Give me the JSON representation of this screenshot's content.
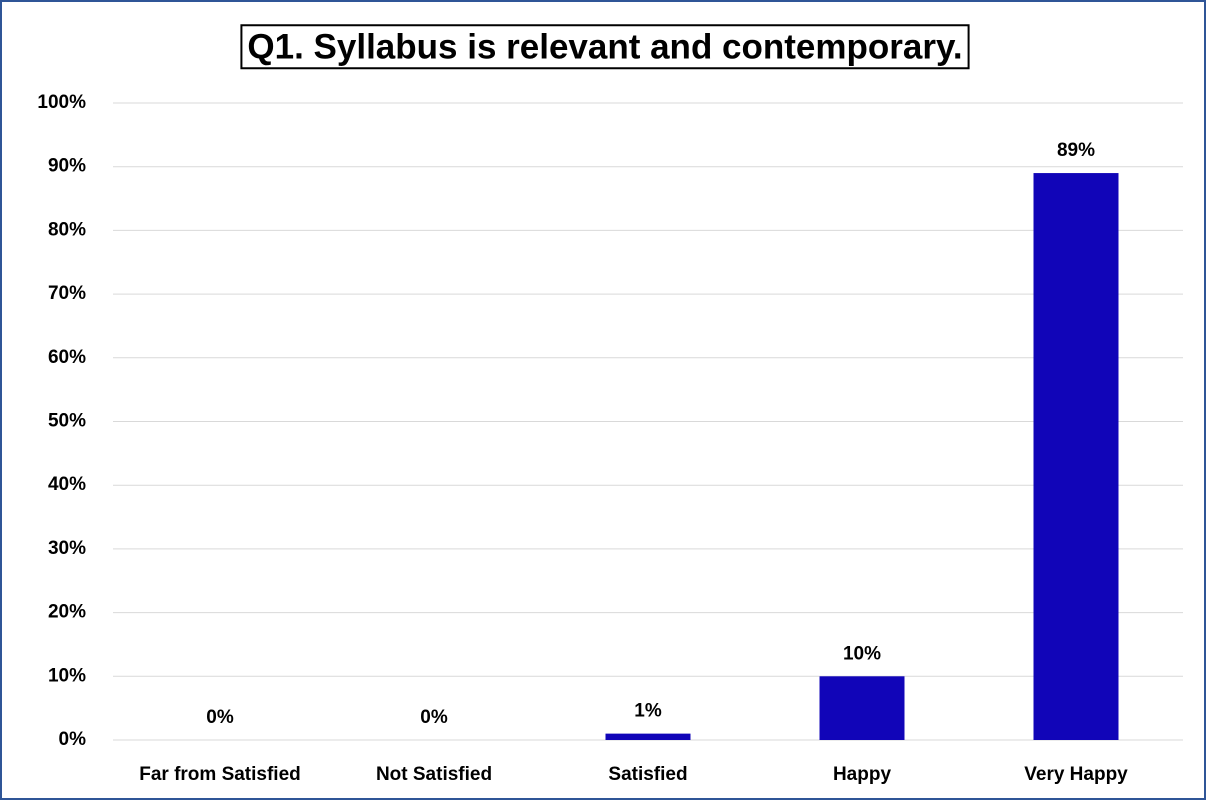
{
  "chart_data": {
    "type": "bar",
    "title": "Q1. Syllabus is relevant and contemporary.",
    "categories": [
      "Far from Satisfied",
      "Not Satisfied",
      "Satisfied",
      "Happy",
      "Very Happy"
    ],
    "values": [
      0,
      0,
      1,
      10,
      89
    ],
    "value_labels": [
      "0%",
      "0%",
      "1%",
      "10%",
      "89%"
    ],
    "color": "#1105b8",
    "ylim": [
      0,
      100
    ],
    "yticks": [
      {
        "value": 0,
        "label": "0%"
      },
      {
        "value": 10,
        "label": "10%"
      },
      {
        "value": 20,
        "label": "20%"
      },
      {
        "value": 30,
        "label": "30%"
      },
      {
        "value": 40,
        "label": "40%"
      },
      {
        "value": 50,
        "label": "50%"
      },
      {
        "value": 60,
        "label": "60%"
      },
      {
        "value": 70,
        "label": "70%"
      },
      {
        "value": 80,
        "label": "80%"
      },
      {
        "value": 90,
        "label": "90%"
      },
      {
        "value": 100,
        "label": "100%"
      }
    ],
    "grid": true
  }
}
